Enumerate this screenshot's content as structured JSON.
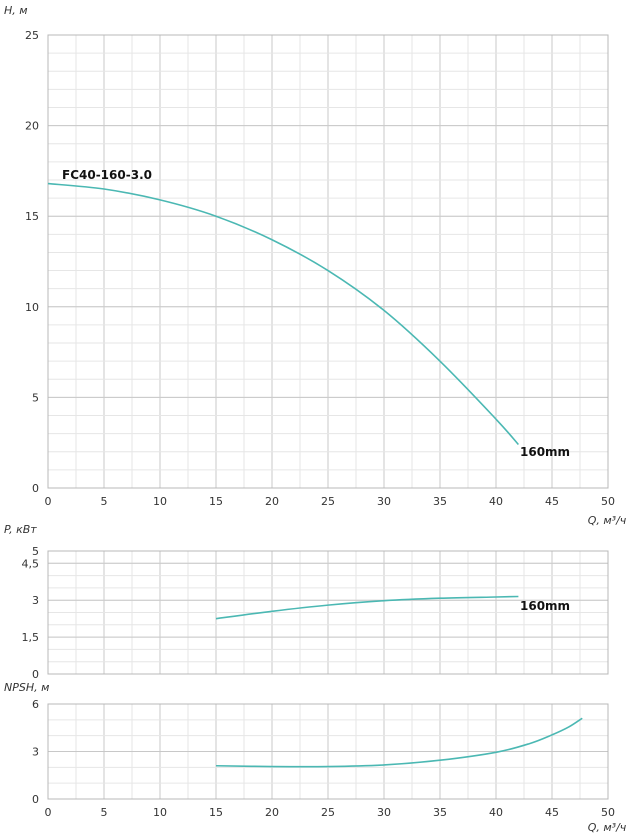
{
  "chart_data": [
    {
      "id": "head",
      "type": "line",
      "ylabel": "H, м",
      "xlabel": "Q, м³/ч",
      "xlim": [
        0,
        50
      ],
      "ylim": [
        0,
        25
      ],
      "x_ticks": [
        "0",
        "5",
        "10",
        "15",
        "20",
        "25",
        "30",
        "35",
        "40",
        "45",
        "50"
      ],
      "y_ticks": [
        "0",
        "5",
        "10",
        "15",
        "20",
        "25"
      ],
      "grid": true,
      "annotation": "FC40-160-3.0",
      "series": [
        {
          "name": "160mm",
          "color": "#4bb8b3",
          "x": [
            0,
            5,
            10,
            15,
            20,
            25,
            30,
            35,
            40,
            42
          ],
          "y": [
            16.8,
            16.5,
            15.9,
            15.0,
            13.7,
            12.0,
            9.8,
            7.0,
            3.8,
            2.4
          ]
        }
      ]
    },
    {
      "id": "power",
      "type": "line",
      "ylabel": "P, кВт",
      "xlabel": "",
      "xlim": [
        0,
        50
      ],
      "ylim": [
        0,
        5
      ],
      "y_ticks": [
        "0",
        "1,5",
        "3",
        "4,5",
        "5"
      ],
      "y_tick_values": [
        0,
        1.5,
        3,
        4.5,
        5
      ],
      "grid": true,
      "series": [
        {
          "name": "160mm",
          "color": "#4bb8b3",
          "x": [
            15,
            20,
            25,
            30,
            35,
            40,
            42
          ],
          "y": [
            2.25,
            2.55,
            2.8,
            2.98,
            3.08,
            3.13,
            3.15
          ]
        }
      ]
    },
    {
      "id": "npsh",
      "type": "line",
      "ylabel": "NPSH, м",
      "xlabel": "Q, м³/ч",
      "xlim": [
        0,
        50
      ],
      "ylim": [
        0,
        6
      ],
      "x_ticks": [
        "0",
        "5",
        "10",
        "15",
        "20",
        "25",
        "30",
        "35",
        "40",
        "45",
        "50"
      ],
      "y_ticks": [
        "0",
        "3",
        "6"
      ],
      "y_tick_values": [
        0,
        3,
        6
      ],
      "grid": true,
      "series": [
        {
          "color": "#4bb8b3",
          "x": [
            15,
            20,
            25,
            30,
            35,
            40,
            43,
            45,
            46.5,
            47.7
          ],
          "y": [
            2.1,
            2.05,
            2.05,
            2.15,
            2.45,
            2.95,
            3.5,
            4.05,
            4.55,
            5.1
          ]
        }
      ]
    }
  ]
}
